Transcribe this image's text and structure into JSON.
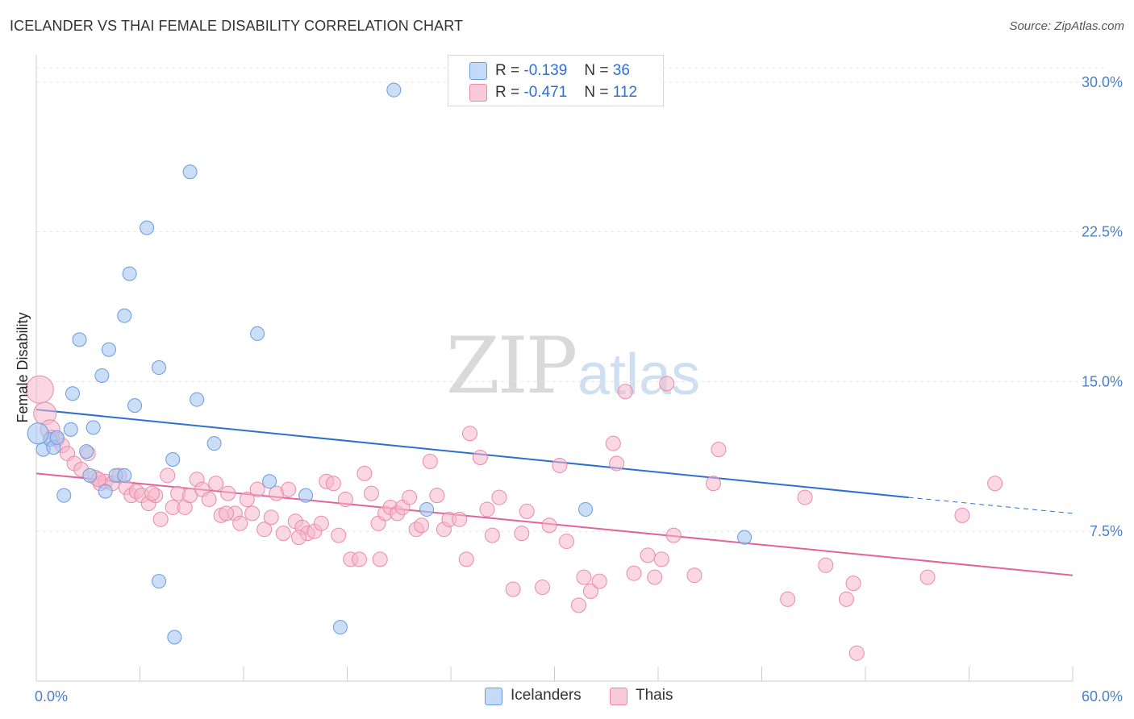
{
  "header": {
    "title": "ICELANDER VS THAI FEMALE DISABILITY CORRELATION CHART",
    "source": "Source: ZipAtlas.com"
  },
  "watermark": {
    "zip": "ZIP",
    "atlas": "atlas"
  },
  "legend": {
    "r_label": "R =",
    "n_label": "N =",
    "rows": [
      {
        "r": "-0.139",
        "n": "36",
        "color": "#a9c8f2"
      },
      {
        "r": "-0.471",
        "n": "112",
        "color": "#f5b6cb"
      }
    ]
  },
  "bottom_legend": {
    "items": [
      {
        "label": "Icelanders",
        "color": "#a9c8f2"
      },
      {
        "label": "Thais",
        "color": "#f5b6cb"
      }
    ]
  },
  "chart_data": {
    "type": "scatter",
    "title": "ICELANDER VS THAI FEMALE DISABILITY CORRELATION CHART",
    "ylabel": "Female Disability",
    "xlabel": "",
    "xlim": [
      0,
      60
    ],
    "ylim": [
      0,
      31
    ],
    "x_tick_labels": [
      "0.0%",
      "60.0%"
    ],
    "y_ticks": [
      7.5,
      15.0,
      22.5,
      30.0
    ],
    "y_tick_labels": [
      "7.5%",
      "15.0%",
      "22.5%",
      "30.0%"
    ],
    "grid": true,
    "legend_position": "top-center",
    "colors": {
      "icelanders_fill": "#a9c8f2",
      "icelanders_stroke": "#6a9be0",
      "icelanders_line": "#2f6fcf",
      "thais_fill": "#f5b6cb",
      "thais_stroke": "#e98aa9",
      "thais_line": "#e0649a"
    },
    "series": [
      {
        "name": "Icelanders",
        "points": [
          [
            0.4,
            11.6
          ],
          [
            0.8,
            12.1
          ],
          [
            1.0,
            11.7
          ],
          [
            1.2,
            12.2
          ],
          [
            1.6,
            9.3
          ],
          [
            2.0,
            12.6
          ],
          [
            2.1,
            14.4
          ],
          [
            2.5,
            17.1
          ],
          [
            2.9,
            11.5
          ],
          [
            3.1,
            10.3
          ],
          [
            3.3,
            12.7
          ],
          [
            3.8,
            15.3
          ],
          [
            4.0,
            9.5
          ],
          [
            4.2,
            16.6
          ],
          [
            4.6,
            10.3
          ],
          [
            5.1,
            18.3
          ],
          [
            5.1,
            10.3
          ],
          [
            5.4,
            20.4
          ],
          [
            5.7,
            13.8
          ],
          [
            6.4,
            22.7
          ],
          [
            7.1,
            15.7
          ],
          [
            7.1,
            5.0
          ],
          [
            7.9,
            11.1
          ],
          [
            8.0,
            2.2
          ],
          [
            8.9,
            25.5
          ],
          [
            9.3,
            14.1
          ],
          [
            10.3,
            11.9
          ],
          [
            12.8,
            17.4
          ],
          [
            13.5,
            10.0
          ],
          [
            15.6,
            9.3
          ],
          [
            17.6,
            2.7
          ],
          [
            20.7,
            29.6
          ],
          [
            22.6,
            8.6
          ],
          [
            31.8,
            8.6
          ],
          [
            41.0,
            7.2
          ],
          [
            0.1,
            12.4
          ]
        ],
        "trend": {
          "x": [
            0,
            50.5
          ],
          "y": [
            13.6,
            9.2
          ],
          "dashed_to": [
            60,
            8.4
          ]
        }
      },
      {
        "name": "Thais",
        "points": [
          [
            0.2,
            14.6
          ],
          [
            0.5,
            13.4
          ],
          [
            0.8,
            12.6
          ],
          [
            1.2,
            12.1
          ],
          [
            1.5,
            11.8
          ],
          [
            1.8,
            11.4
          ],
          [
            2.2,
            10.9
          ],
          [
            2.6,
            10.6
          ],
          [
            3.0,
            11.4
          ],
          [
            3.4,
            10.2
          ],
          [
            3.7,
            9.9
          ],
          [
            4.0,
            10.0
          ],
          [
            4.4,
            9.9
          ],
          [
            4.8,
            10.3
          ],
          [
            5.2,
            9.7
          ],
          [
            5.5,
            9.3
          ],
          [
            5.8,
            9.5
          ],
          [
            6.1,
            9.3
          ],
          [
            6.5,
            8.9
          ],
          [
            6.9,
            9.3
          ],
          [
            7.2,
            8.1
          ],
          [
            7.6,
            10.3
          ],
          [
            7.9,
            8.7
          ],
          [
            8.2,
            9.4
          ],
          [
            8.6,
            8.7
          ],
          [
            8.9,
            9.3
          ],
          [
            9.3,
            10.1
          ],
          [
            9.6,
            9.6
          ],
          [
            10.0,
            9.1
          ],
          [
            10.4,
            9.9
          ],
          [
            10.7,
            8.3
          ],
          [
            11.1,
            9.4
          ],
          [
            11.5,
            8.4
          ],
          [
            11.8,
            7.9
          ],
          [
            12.2,
            9.1
          ],
          [
            12.5,
            8.4
          ],
          [
            12.8,
            9.6
          ],
          [
            13.2,
            7.6
          ],
          [
            13.6,
            8.2
          ],
          [
            13.9,
            9.4
          ],
          [
            14.3,
            7.4
          ],
          [
            14.6,
            9.6
          ],
          [
            15.0,
            8.0
          ],
          [
            15.4,
            7.7
          ],
          [
            15.7,
            7.4
          ],
          [
            16.1,
            7.5
          ],
          [
            16.5,
            7.9
          ],
          [
            16.8,
            10.0
          ],
          [
            17.2,
            9.9
          ],
          [
            17.5,
            7.3
          ],
          [
            17.9,
            9.1
          ],
          [
            18.2,
            6.1
          ],
          [
            18.7,
            6.1
          ],
          [
            19.0,
            10.4
          ],
          [
            19.4,
            9.4
          ],
          [
            19.8,
            7.9
          ],
          [
            20.2,
            8.4
          ],
          [
            20.5,
            8.7
          ],
          [
            20.9,
            8.4
          ],
          [
            21.2,
            8.7
          ],
          [
            21.6,
            9.2
          ],
          [
            22.0,
            7.6
          ],
          [
            22.3,
            7.8
          ],
          [
            22.8,
            11.0
          ],
          [
            23.2,
            9.3
          ],
          [
            23.6,
            7.6
          ],
          [
            23.9,
            8.1
          ],
          [
            24.5,
            8.1
          ],
          [
            25.1,
            12.4
          ],
          [
            25.7,
            11.2
          ],
          [
            26.1,
            8.6
          ],
          [
            26.4,
            7.3
          ],
          [
            26.8,
            9.2
          ],
          [
            27.6,
            4.6
          ],
          [
            28.1,
            7.4
          ],
          [
            28.4,
            8.5
          ],
          [
            29.3,
            4.7
          ],
          [
            29.7,
            7.8
          ],
          [
            30.3,
            10.8
          ],
          [
            30.7,
            7.0
          ],
          [
            31.4,
            3.8
          ],
          [
            31.7,
            5.2
          ],
          [
            32.1,
            4.5
          ],
          [
            32.6,
            5.0
          ],
          [
            33.4,
            11.9
          ],
          [
            33.6,
            10.9
          ],
          [
            34.1,
            14.5
          ],
          [
            34.6,
            5.4
          ],
          [
            35.4,
            6.3
          ],
          [
            35.8,
            5.2
          ],
          [
            36.2,
            6.1
          ],
          [
            36.5,
            14.9
          ],
          [
            36.9,
            7.3
          ],
          [
            38.1,
            5.3
          ],
          [
            39.2,
            9.9
          ],
          [
            39.5,
            11.6
          ],
          [
            43.5,
            4.1
          ],
          [
            44.5,
            9.2
          ],
          [
            45.7,
            5.8
          ],
          [
            46.9,
            4.1
          ],
          [
            47.3,
            4.9
          ],
          [
            47.5,
            1.4
          ],
          [
            51.6,
            5.2
          ],
          [
            53.6,
            8.3
          ],
          [
            55.5,
            9.9
          ],
          [
            24.9,
            6.1
          ],
          [
            19.9,
            6.1
          ],
          [
            15.2,
            7.2
          ],
          [
            11.0,
            8.4
          ],
          [
            6.7,
            9.4
          ],
          [
            3.6,
            10.1
          ],
          [
            0.9,
            12.2
          ]
        ],
        "trend": {
          "x": [
            0,
            60
          ],
          "y": [
            10.4,
            5.3
          ]
        }
      }
    ]
  }
}
